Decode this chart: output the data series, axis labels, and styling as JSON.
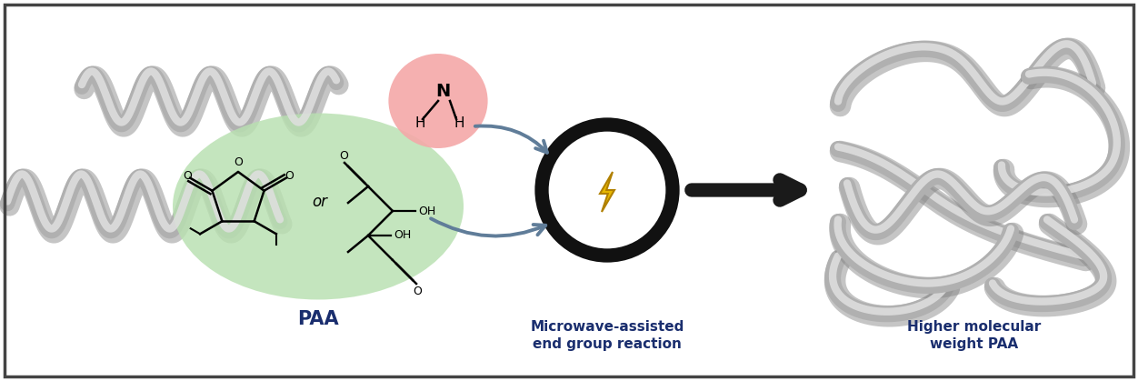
{
  "bg_color": "#ffffff",
  "border_color": "#444444",
  "fig_width": 12.52,
  "fig_height": 4.19,
  "label_paa": "PAA",
  "label_microwave": "Microwave-assisted\nend group reaction",
  "label_higher_mw": "Higher molecular\nweight PAA",
  "label_color": "#1a2e6e",
  "pink_color": "#f4a8a8",
  "green_color": "#b8e0b0",
  "arrow_color": "#607d99",
  "big_arrow_color": "#2a2a2a",
  "lightning_gold": "#e8b800",
  "lightning_edge": "#b08000",
  "chain_main": "#b0b0b0",
  "chain_highlight": "#e0e0e0",
  "chain_shadow": "#808080"
}
